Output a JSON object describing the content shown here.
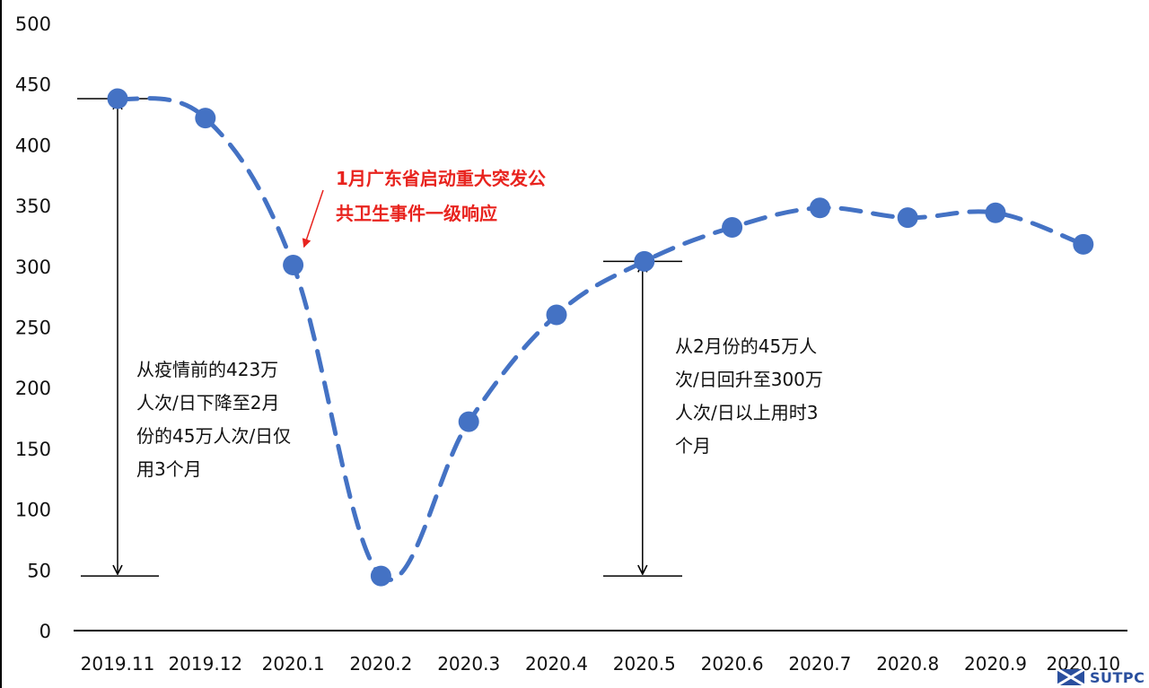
{
  "chart_data": {
    "type": "line",
    "categories": [
      "2019.11",
      "2019.12",
      "2020.1",
      "2020.2",
      "2020.3",
      "2020.4",
      "2020.5",
      "2020.6",
      "2020.7",
      "2020.8",
      "2020.9",
      "2020.10"
    ],
    "values": [
      438,
      422,
      301,
      45,
      172,
      260,
      304,
      332,
      348,
      340,
      344,
      318
    ],
    "ylim": [
      0,
      500
    ],
    "yticks": [
      0,
      50,
      100,
      150,
      200,
      250,
      300,
      350,
      400,
      450,
      500
    ],
    "grid": false,
    "line_style": "dashed",
    "color": "#4472c4",
    "annotations": {
      "left_note": [
        "从疫情前的423万",
        "人次/日下降至2月",
        "份的45万人次/日仅",
        "用3个月"
      ],
      "right_note": [
        "从2月份的45万人",
        "次/日回升至300万",
        "人次/日以上用时3",
        "个月"
      ],
      "callout": [
        "1月广东省启动重大突发公",
        "共卫生事件一级响应"
      ],
      "callout_color": "#e8231e"
    }
  },
  "logo": {
    "text": "SUTPC"
  }
}
